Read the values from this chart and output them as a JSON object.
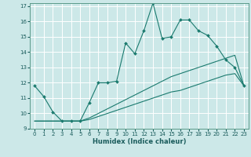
{
  "xlabel": "Humidex (Indice chaleur)",
  "xlim": [
    -0.5,
    23.5
  ],
  "ylim": [
    9,
    17.2
  ],
  "yticks": [
    9,
    10,
    11,
    12,
    13,
    14,
    15,
    16,
    17
  ],
  "xticks": [
    0,
    1,
    2,
    3,
    4,
    5,
    6,
    7,
    8,
    9,
    10,
    11,
    12,
    13,
    14,
    15,
    16,
    17,
    18,
    19,
    20,
    21,
    22,
    23
  ],
  "bg_color": "#cce8e8",
  "grid_color": "#ffffff",
  "line_color": "#1a7a6e",
  "lines": [
    {
      "x": [
        0,
        1,
        2,
        3,
        4,
        5,
        6,
        7,
        8,
        9,
        10,
        11,
        12,
        13,
        14,
        15,
        16,
        17,
        18,
        19,
        20,
        21,
        22,
        23
      ],
      "y": [
        11.8,
        11.1,
        10.1,
        9.5,
        9.5,
        9.5,
        10.7,
        12.0,
        12.0,
        12.1,
        14.6,
        13.9,
        15.4,
        17.2,
        14.9,
        15.0,
        16.1,
        16.1,
        15.4,
        15.1,
        14.4,
        13.5,
        13.0,
        11.8
      ],
      "marker": true
    },
    {
      "x": [
        0,
        1,
        2,
        3,
        4,
        5,
        6,
        7,
        8,
        9,
        10,
        11,
        12,
        13,
        14,
        15,
        16,
        17,
        18,
        19,
        20,
        21,
        22,
        23
      ],
      "y": [
        9.5,
        9.5,
        9.5,
        9.5,
        9.5,
        9.5,
        9.7,
        10.0,
        10.3,
        10.6,
        10.9,
        11.2,
        11.5,
        11.8,
        12.1,
        12.4,
        12.6,
        12.8,
        13.0,
        13.2,
        13.4,
        13.6,
        13.8,
        11.8
      ],
      "marker": false
    },
    {
      "x": [
        0,
        1,
        2,
        3,
        4,
        5,
        6,
        7,
        8,
        9,
        10,
        11,
        12,
        13,
        14,
        15,
        16,
        17,
        18,
        19,
        20,
        21,
        22,
        23
      ],
      "y": [
        9.5,
        9.5,
        9.5,
        9.5,
        9.5,
        9.5,
        9.6,
        9.8,
        10.0,
        10.2,
        10.4,
        10.6,
        10.8,
        11.0,
        11.2,
        11.4,
        11.5,
        11.7,
        11.9,
        12.1,
        12.3,
        12.5,
        12.6,
        11.8
      ],
      "marker": false
    }
  ]
}
